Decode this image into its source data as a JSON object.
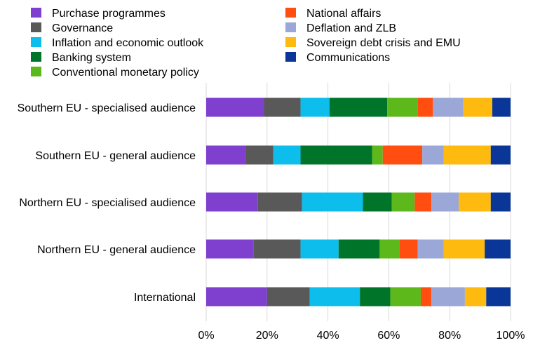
{
  "chart_data": {
    "type": "bar",
    "stacked": true,
    "orientation": "horizontal",
    "percent_stacked": true,
    "categories": [
      "Southern EU - specialised audience",
      "Southern EU - general audience",
      "Northern EU - specialised audience",
      "Northern EU - general audience",
      "International"
    ],
    "series": [
      {
        "name": "Purchase programmes",
        "color": "#7F3FCF",
        "values": [
          19,
          13,
          17,
          15.5,
          20
        ]
      },
      {
        "name": "Governance",
        "color": "#595959",
        "values": [
          12,
          9,
          14.5,
          15.5,
          14
        ]
      },
      {
        "name": "Inflation and economic outlook",
        "color": "#0DBDEB",
        "values": [
          9.5,
          9,
          20,
          12.5,
          16.5
        ]
      },
      {
        "name": "Banking system",
        "color": "#00752A",
        "values": [
          19,
          23.5,
          9.5,
          13.5,
          10
        ]
      },
      {
        "name": "Conventional monetary policy",
        "color": "#5DB81B",
        "values": [
          10,
          3.5,
          7.5,
          6.5,
          10
        ]
      },
      {
        "name": "National affairs",
        "color": "#FF4E0F",
        "values": [
          5,
          13,
          5.5,
          6,
          3.5
        ]
      },
      {
        "name": "Deflation and ZLB",
        "color": "#9BA7D6",
        "values": [
          10,
          7,
          9,
          8.5,
          11
        ]
      },
      {
        "name": "Sovereign debt crisis and EMU",
        "color": "#FFBA0F",
        "values": [
          9.5,
          15.5,
          10.5,
          13.5,
          7
        ]
      },
      {
        "name": "Communications",
        "color": "#0A3797",
        "values": [
          6,
          6.5,
          6.5,
          8.5,
          8
        ]
      }
    ],
    "xlim": [
      0,
      100
    ],
    "x_ticks": [
      "0%",
      "20%",
      "40%",
      "60%",
      "80%",
      "100%"
    ],
    "x_grid": true,
    "legend_position": "top",
    "title": "",
    "xlabel": "",
    "ylabel": ""
  }
}
